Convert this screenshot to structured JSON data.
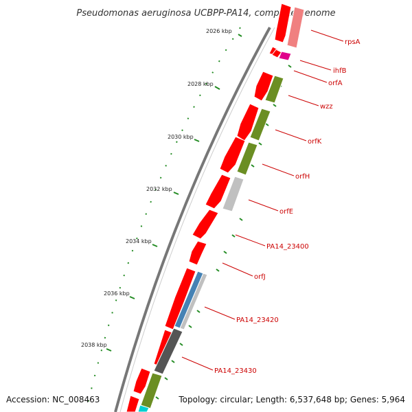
{
  "title": "Pseudomonas aeruginosa UCBPP-PA14, complete genome",
  "footer": {
    "accession": "Accession: NC_008463",
    "topology": "Topology: circular; Length: 6,537,648 bp; Genes: 5,964"
  },
  "scale_labels": [
    "2026 kbp",
    "2028 kbp",
    "2030 kbp",
    "2032 kbp",
    "2034 kbp",
    "2036 kbp",
    "2038 kbp"
  ],
  "gene_labels": [
    "rpsA",
    "ihfB",
    "orfA",
    "wzz",
    "orfK",
    "orfH",
    "orfE",
    "PA14_23400",
    "orfJ",
    "PA14_23420",
    "PA14_23430"
  ],
  "colors": {
    "forward_gene": "#ff0000",
    "light_red": "#f08080",
    "magenta": "#e0008a",
    "olive": "#6b8e23",
    "light_gray": "#c0c0c0",
    "steel_blue": "#4682b4",
    "dark_gray": "#555555",
    "cyan": "#00d0d0",
    "ticks": "#228b22",
    "label_lines": "#cc0000"
  }
}
